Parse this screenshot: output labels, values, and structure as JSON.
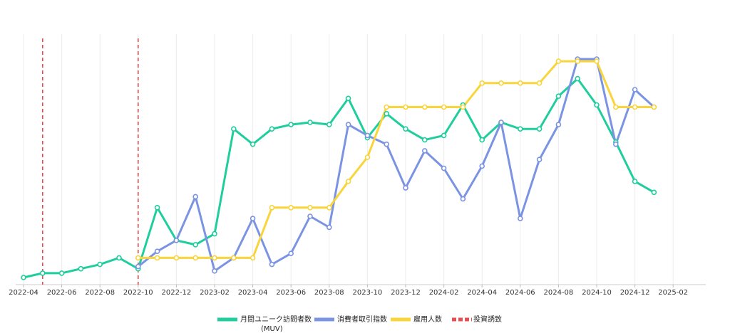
{
  "chart_data": {
    "type": "line",
    "xlabel": "",
    "ylabel": "",
    "x_ticks": [
      "2022-04",
      "2022-06",
      "2022-08",
      "2022-10",
      "2022-12",
      "2023-02",
      "2023-04",
      "2023-06",
      "2023-08",
      "2023-10",
      "2023-12",
      "2024-02",
      "2024-04",
      "2024-06",
      "2024-08",
      "2024-10",
      "2024-12",
      "2025-02"
    ],
    "y_axis_labels_visible": false,
    "ylim": [
      0,
      100
    ],
    "grid": "vertical",
    "legend_position": "bottom",
    "x": [
      "2022-04",
      "2022-05",
      "2022-06",
      "2022-07",
      "2022-08",
      "2022-09",
      "2022-10",
      "2022-11",
      "2022-12",
      "2023-01",
      "2023-02",
      "2023-03",
      "2023-04",
      "2023-05",
      "2023-06",
      "2023-07",
      "2023-08",
      "2023-09",
      "2023-10",
      "2023-11",
      "2023-12",
      "2024-01",
      "2024-02",
      "2024-03",
      "2024-04",
      "2024-05",
      "2024-06",
      "2024-07",
      "2024-08",
      "2024-09",
      "2024-10",
      "2024-11",
      "2024-12",
      "2025-01"
    ],
    "series": [
      {
        "name": "月間ユニーク訪問者数",
        "name_line2": "(MUV)",
        "color": "#1fce9c",
        "values": [
          0,
          2,
          2,
          4,
          6,
          9,
          4,
          32,
          17,
          15,
          20,
          68,
          61,
          68,
          70,
          71,
          70,
          82,
          64,
          75,
          68,
          63,
          65,
          79,
          63,
          71,
          68,
          68,
          83,
          91,
          79,
          62,
          44,
          39
        ]
      },
      {
        "name": "消費者取引指数",
        "color": "#7b93e3",
        "values": [
          null,
          null,
          null,
          null,
          null,
          null,
          5,
          12,
          17,
          37,
          3,
          9,
          27,
          6,
          11,
          28,
          23,
          70,
          65,
          61,
          41,
          58,
          50,
          36,
          51,
          71,
          27,
          54,
          70,
          100,
          100,
          61,
          86,
          78
        ]
      },
      {
        "name": "雇用人数",
        "color": "#f9d43a",
        "values": [
          null,
          null,
          null,
          null,
          null,
          null,
          9,
          9,
          9,
          9,
          9,
          9,
          9,
          32,
          32,
          32,
          32,
          44,
          55,
          78,
          78,
          78,
          78,
          78,
          89,
          89,
          89,
          89,
          99,
          99,
          99,
          78,
          78,
          78
        ]
      }
    ],
    "events": {
      "name": "投資誘致",
      "color": "#e94e4e",
      "dates": [
        "2022-05",
        "2022-10"
      ]
    }
  }
}
